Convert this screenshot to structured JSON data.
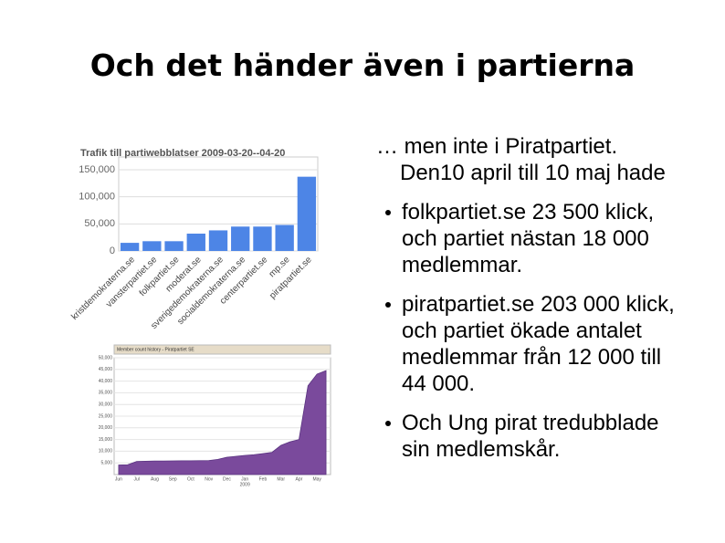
{
  "title": "Och det händer även i partierna",
  "intro": "… men inte i Piratpartiet. Den10 april till 10 maj hade",
  "bullets": [
    "folkpartiet.se 23 500 klick, och partiet nästan 18 000 medlemmar.",
    "piratpartiet.se 203 000 klick, och partiet ökade antalet medlemmar från 12 000 till 44 000.",
    "Och Ung pirat tredubblade sin medlemskår."
  ],
  "chart_data": [
    {
      "type": "bar",
      "title": "Trafik till partiwebblatser 2009-03-20--04-20",
      "categories": [
        "kristdemokraterna.se",
        "vansterpartiet.se",
        "folkpartiet.se",
        "moderat.se",
        "sverigedemokraterna.se",
        "socialdemokraterna.se",
        "centerpartiet.se",
        "mp.se",
        "piratpartiet.se"
      ],
      "values": [
        15000,
        18000,
        18000,
        32000,
        38000,
        45000,
        45000,
        48000,
        137000
      ],
      "color": "#4d85e6",
      "ylim": [
        0,
        160000
      ],
      "yticks": [
        0,
        {
          "value": 50000,
          "label": "50,000"
        },
        {
          "value": 100000,
          "label": "100,000"
        },
        {
          "value": 150000,
          "label": "150,000"
        }
      ],
      "grid": true
    },
    {
      "type": "area",
      "title": "Member count history - Piratpartiet SE",
      "categories": [
        "Jun",
        null,
        "Jul",
        null,
        "Aug",
        null,
        "Sep",
        null,
        "Oct",
        null,
        "Nov",
        null,
        "Dec",
        null,
        "Jan",
        null,
        "Feb",
        null,
        "Mar",
        null,
        "Apr",
        null,
        "May",
        null
      ],
      "values": [
        4100,
        4200,
        5600,
        5700,
        5800,
        5800,
        5850,
        5900,
        5900,
        5950,
        6000,
        6500,
        7400,
        7800,
        8200,
        8500,
        9000,
        9500,
        12500,
        14000,
        15000,
        38000,
        43000,
        44500
      ],
      "annotation": "2009",
      "color": "#7a4a9c",
      "ylim": [
        0,
        50000
      ],
      "yticks": [
        {
          "value": 5000,
          "label": "5,000"
        },
        {
          "value": 10000,
          "label": "10,000"
        },
        {
          "value": 15000,
          "label": "15,000"
        },
        {
          "value": 20000,
          "label": "20,000"
        },
        {
          "value": 25000,
          "label": "25,000"
        },
        {
          "value": 30000,
          "label": "30,000"
        },
        {
          "value": 35000,
          "label": "35,000"
        },
        {
          "value": 40000,
          "label": "40,000"
        },
        {
          "value": 45000,
          "label": "45,000"
        },
        {
          "value": 50000,
          "label": "50,000"
        }
      ],
      "grid": true
    }
  ]
}
